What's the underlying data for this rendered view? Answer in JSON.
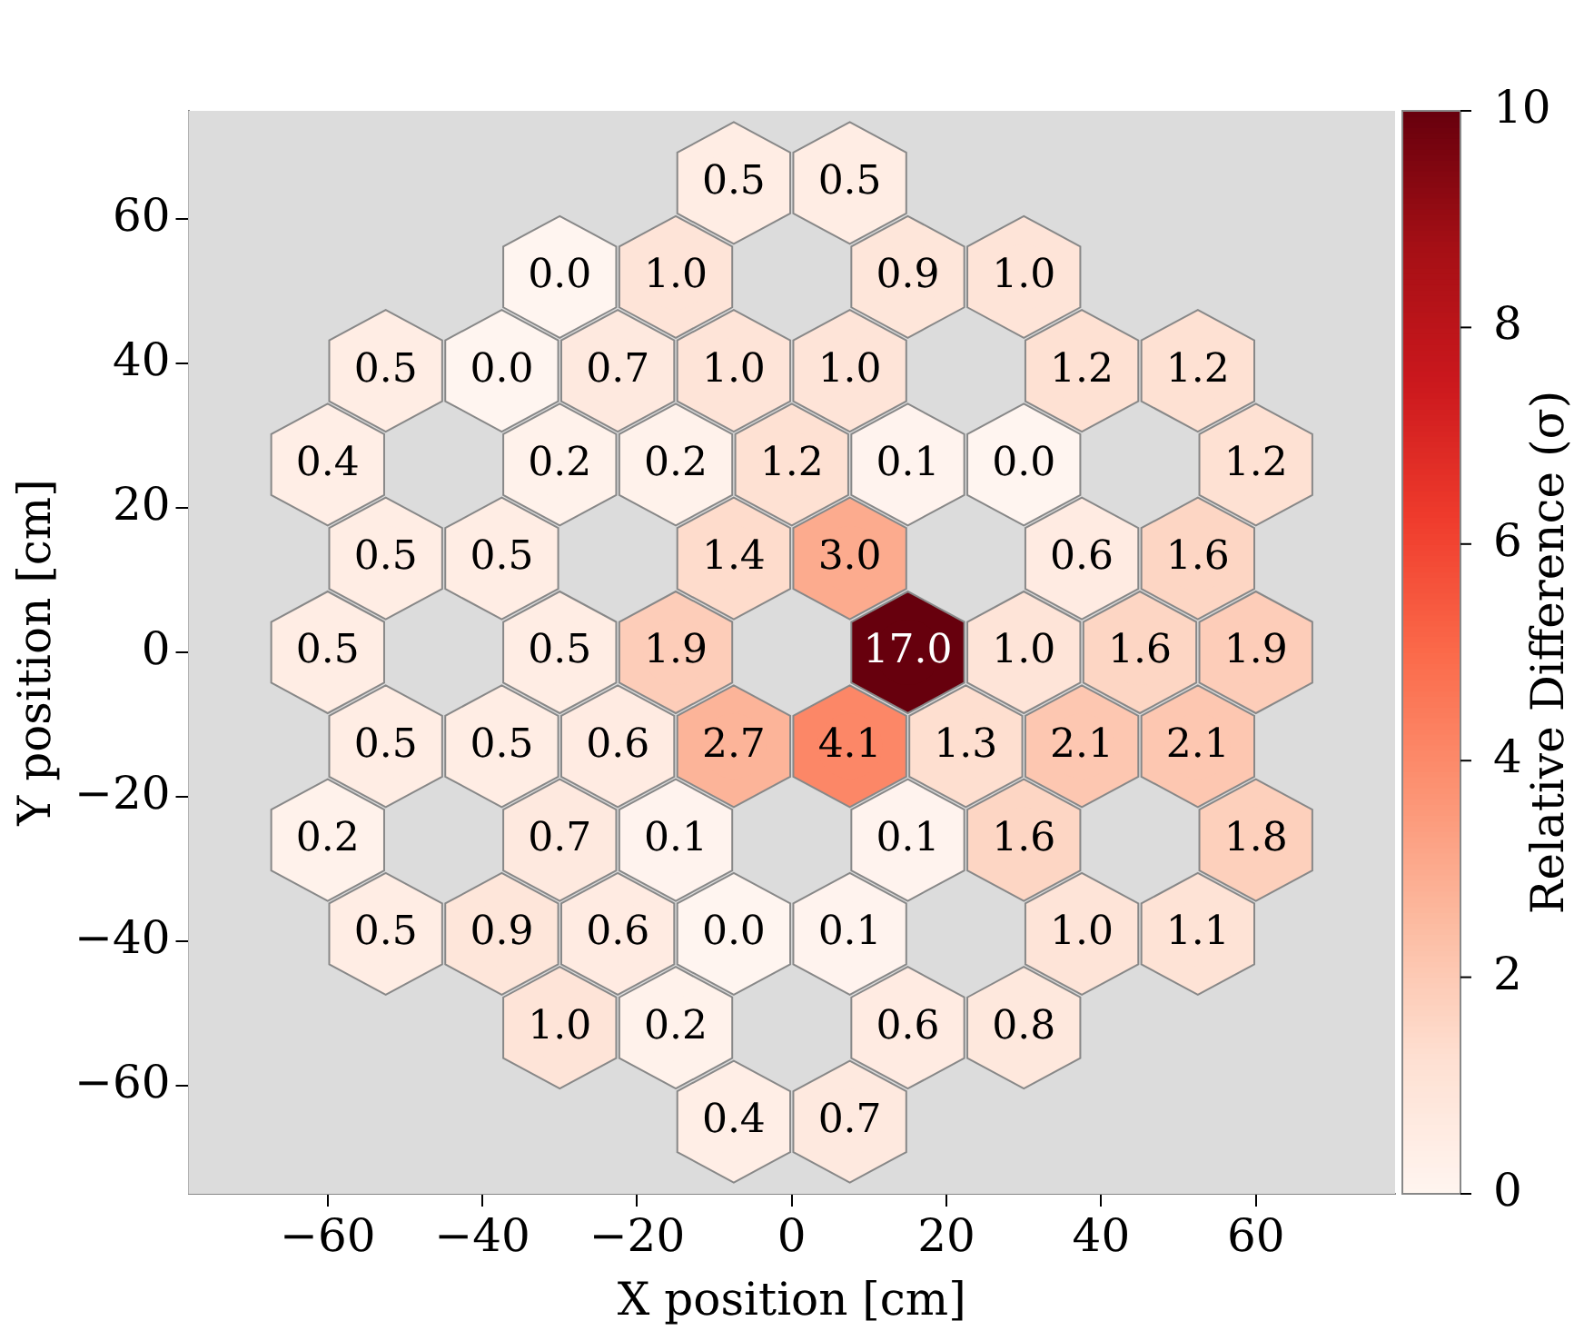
{
  "chart_data": {
    "type": "scatter",
    "xlabel": "X position [cm]",
    "ylabel": "Y position [cm]",
    "clabel": "Relative Difference (σ)",
    "xlim": [
      -78,
      78
    ],
    "ylim": [
      -75,
      75
    ],
    "xticks": [
      {
        "value": -60,
        "label": "−60"
      },
      {
        "value": -40,
        "label": "−40"
      },
      {
        "value": -20,
        "label": "−20"
      },
      0,
      20,
      40,
      60
    ],
    "yticks": [
      {
        "value": -60,
        "label": "−60"
      },
      {
        "value": -40,
        "label": "−40"
      },
      {
        "value": -20,
        "label": "−20"
      },
      0,
      20,
      40,
      60
    ],
    "clim": [
      0,
      10
    ],
    "cticks": [
      0,
      2,
      4,
      6,
      8,
      10
    ],
    "x": [
      -7.5,
      7.5,
      -30,
      -15,
      15,
      30,
      -52.5,
      -37.5,
      -22.5,
      -7.5,
      7.5,
      37.5,
      52.5,
      -60,
      -30,
      -15,
      0,
      15,
      30,
      60,
      -52.5,
      -37.5,
      -7.5,
      7.5,
      37.5,
      52.5,
      -60,
      -30,
      -15,
      15,
      30,
      45,
      60,
      -52.5,
      -37.5,
      -22.5,
      -7.5,
      7.5,
      22.5,
      37.5,
      52.5,
      -60,
      -30,
      -15,
      15,
      30,
      60,
      -52.5,
      -37.5,
      -22.5,
      -7.5,
      7.5,
      37.5,
      52.5,
      -30,
      -15,
      15,
      30,
      -7.5,
      7.5
    ],
    "values": [
      65,
      65,
      52,
      52,
      52,
      52,
      39,
      39,
      39,
      39,
      39,
      39,
      39,
      26,
      26,
      26,
      26,
      26,
      26,
      26,
      13,
      13,
      13,
      13,
      13,
      13,
      0,
      0,
      0,
      0,
      0,
      0,
      0,
      -13,
      -13,
      -13,
      -13,
      -13,
      -13,
      -13,
      -13,
      -26,
      -26,
      -26,
      -26,
      -26,
      -26,
      -39,
      -39,
      -39,
      -39,
      -39,
      -39,
      -39,
      -52,
      -52,
      -52,
      -52,
      -65,
      -65
    ],
    "cvalues": [
      0.5,
      0.5,
      0.0,
      1.0,
      0.9,
      1.0,
      0.5,
      0.0,
      0.7,
      1.0,
      1.0,
      1.2,
      1.2,
      0.4,
      0.2,
      0.2,
      1.2,
      0.1,
      0.0,
      1.2,
      0.5,
      0.5,
      1.4,
      3.0,
      0.6,
      1.6,
      0.5,
      0.5,
      1.9,
      17.0,
      1.0,
      1.6,
      1.9,
      0.5,
      0.5,
      0.6,
      2.7,
      4.1,
      1.3,
      2.1,
      2.1,
      0.2,
      0.7,
      0.1,
      0.1,
      1.6,
      1.8,
      0.5,
      0.9,
      0.6,
      0.0,
      0.1,
      1.0,
      1.1,
      1.0,
      0.2,
      0.6,
      0.8,
      0.4,
      0.7
    ],
    "annotations": [
      {
        "text": "0.5",
        "x": -7.5,
        "y": 65
      },
      {
        "text": "0.5",
        "x": 7.5,
        "y": 65
      },
      {
        "text": "0.0",
        "x": -30,
        "y": 52
      },
      {
        "text": "1.0",
        "x": -15,
        "y": 52
      },
      {
        "text": "0.9",
        "x": 15,
        "y": 52
      },
      {
        "text": "1.0",
        "x": 30,
        "y": 52
      },
      {
        "text": "0.5",
        "x": -52.5,
        "y": 39
      },
      {
        "text": "0.0",
        "x": -37.5,
        "y": 39
      },
      {
        "text": "0.7",
        "x": -22.5,
        "y": 39
      },
      {
        "text": "1.0",
        "x": -7.5,
        "y": 39
      },
      {
        "text": "1.0",
        "x": 7.5,
        "y": 39
      },
      {
        "text": "1.2",
        "x": 37.5,
        "y": 39
      },
      {
        "text": "1.2",
        "x": 52.5,
        "y": 39
      },
      {
        "text": "0.4",
        "x": -60,
        "y": 26
      },
      {
        "text": "0.2",
        "x": -30,
        "y": 26
      },
      {
        "text": "0.2",
        "x": -15,
        "y": 26
      },
      {
        "text": "1.2",
        "x": 0,
        "y": 26
      },
      {
        "text": "0.1",
        "x": 15,
        "y": 26
      },
      {
        "text": "0.0",
        "x": 30,
        "y": 26
      },
      {
        "text": "1.2",
        "x": 60,
        "y": 26
      },
      {
        "text": "0.5",
        "x": -52.5,
        "y": 13
      },
      {
        "text": "0.5",
        "x": -37.5,
        "y": 13
      },
      {
        "text": "1.4",
        "x": -7.5,
        "y": 13
      },
      {
        "text": "3.0",
        "x": 7.5,
        "y": 13
      },
      {
        "text": "0.6",
        "x": 37.5,
        "y": 13
      },
      {
        "text": "1.6",
        "x": 52.5,
        "y": 13
      },
      {
        "text": "0.5",
        "x": -60,
        "y": 0
      },
      {
        "text": "0.5",
        "x": -30,
        "y": 0
      },
      {
        "text": "1.9",
        "x": -15,
        "y": 0
      },
      {
        "text": "17.0",
        "x": 15,
        "y": 0
      },
      {
        "text": "1.0",
        "x": 30,
        "y": 0
      },
      {
        "text": "1.6",
        "x": 45,
        "y": 0
      },
      {
        "text": "1.9",
        "x": 60,
        "y": 0
      },
      {
        "text": "0.5",
        "x": -52.5,
        "y": -13
      },
      {
        "text": "0.5",
        "x": -37.5,
        "y": -13
      },
      {
        "text": "0.6",
        "x": -22.5,
        "y": -13
      },
      {
        "text": "2.7",
        "x": -7.5,
        "y": -13
      },
      {
        "text": "4.1",
        "x": 7.5,
        "y": -13
      },
      {
        "text": "1.3",
        "x": 22.5,
        "y": -13
      },
      {
        "text": "2.1",
        "x": 37.5,
        "y": -13
      },
      {
        "text": "2.1",
        "x": 52.5,
        "y": -13
      },
      {
        "text": "0.2",
        "x": -60,
        "y": -26
      },
      {
        "text": "0.7",
        "x": -30,
        "y": -26
      },
      {
        "text": "0.1",
        "x": -15,
        "y": -26
      },
      {
        "text": "0.1",
        "x": 15,
        "y": -26
      },
      {
        "text": "1.6",
        "x": 30,
        "y": -26
      },
      {
        "text": "1.8",
        "x": 60,
        "y": -26
      },
      {
        "text": "0.5",
        "x": -52.5,
        "y": -39
      },
      {
        "text": "0.9",
        "x": -37.5,
        "y": -39
      },
      {
        "text": "0.6",
        "x": -22.5,
        "y": -39
      },
      {
        "text": "0.0",
        "x": -7.5,
        "y": -39
      },
      {
        "text": "0.1",
        "x": 7.5,
        "y": -39
      },
      {
        "text": "1.0",
        "x": 37.5,
        "y": -39
      },
      {
        "text": "1.1",
        "x": 52.5,
        "y": -39
      },
      {
        "text": "1.0",
        "x": -30,
        "y": -52
      },
      {
        "text": "0.2",
        "x": -15,
        "y": -52
      },
      {
        "text": "0.6",
        "x": 15,
        "y": -52
      },
      {
        "text": "0.8",
        "x": 30,
        "y": -52
      },
      {
        "text": "0.4",
        "x": -7.5,
        "y": -65
      },
      {
        "text": "0.7",
        "x": 7.5,
        "y": -65
      }
    ]
  }
}
